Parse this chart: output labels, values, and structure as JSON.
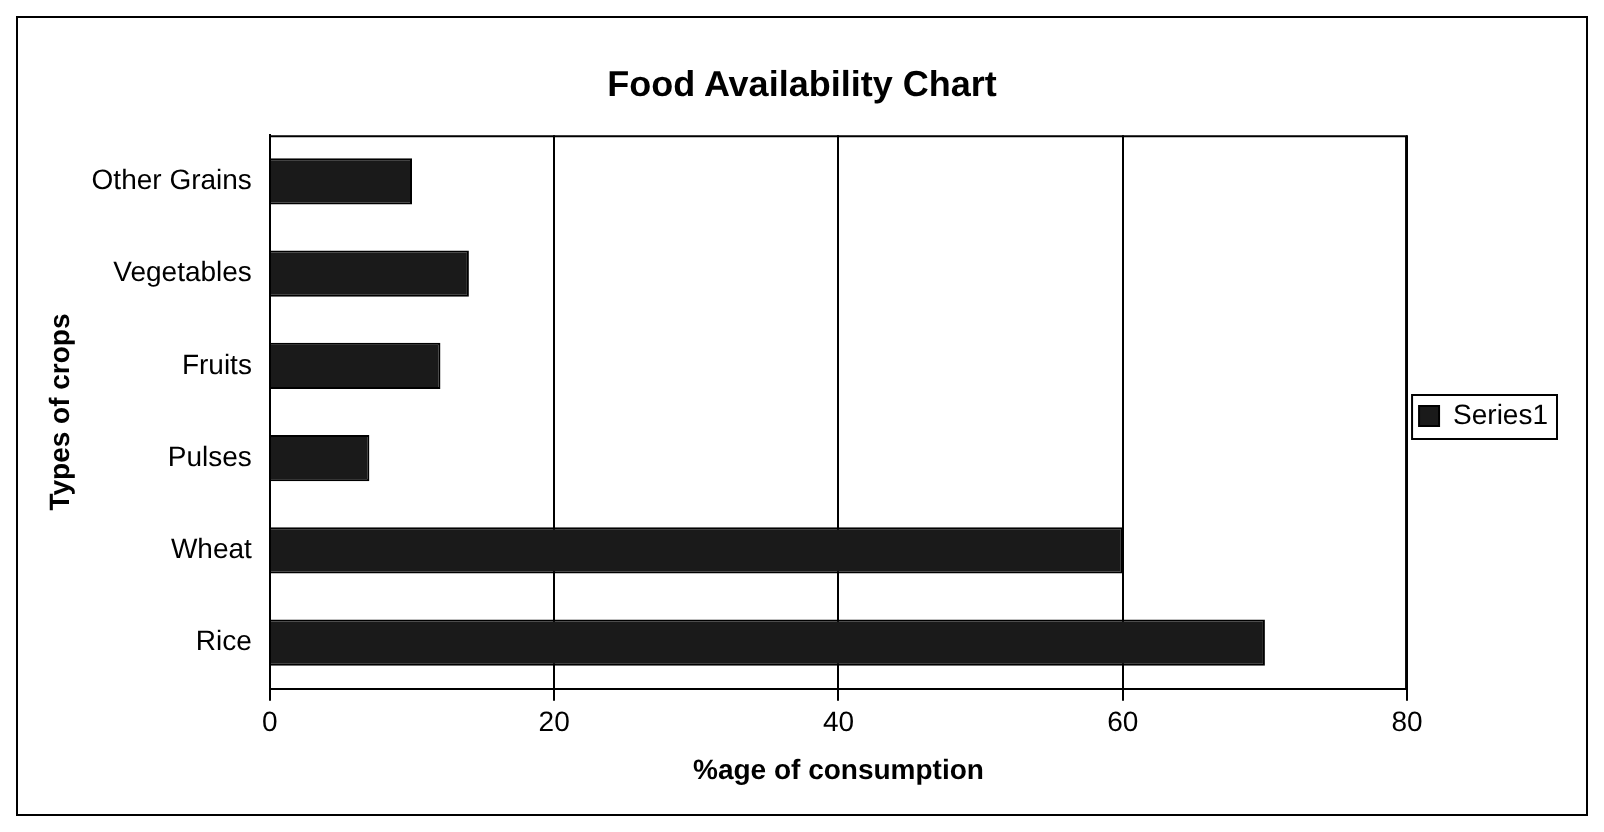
{
  "chart_data": {
    "type": "bar",
    "orientation": "horizontal",
    "title": "Food Availability Chart",
    "xlabel": "%age of consumption",
    "ylabel": "Types of crops",
    "categories": [
      "Other Grains",
      "Vegetables",
      "Fruits",
      "Pulses",
      "Wheat",
      "Rice"
    ],
    "series": [
      {
        "name": "Series1",
        "color": "#1a1a1a",
        "values": [
          10,
          14,
          12,
          7,
          60,
          70
        ]
      }
    ],
    "xlim": [
      0,
      80
    ],
    "xticks": [
      0,
      20,
      40,
      60,
      80
    ],
    "grid": "x",
    "legend": "right"
  }
}
